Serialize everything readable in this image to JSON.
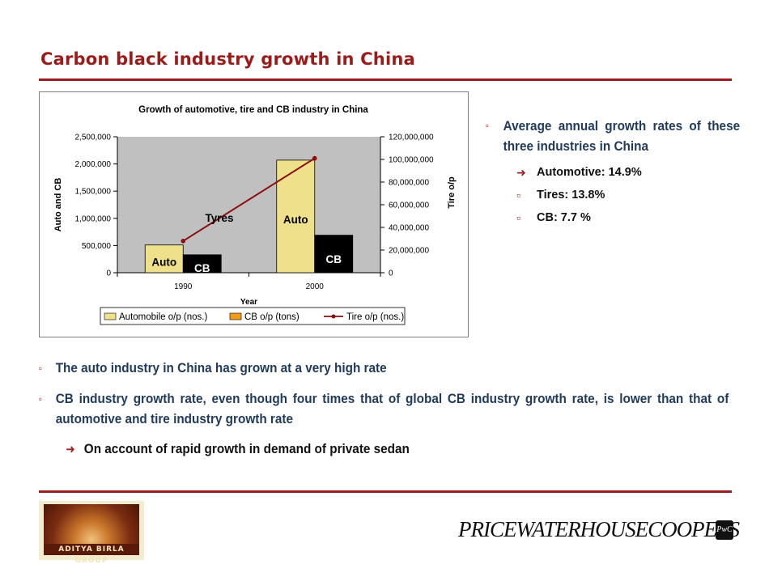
{
  "slide": {
    "title": "Carbon black industry growth in China"
  },
  "chart_data": {
    "type": "bar",
    "title": "Growth of automotive, tire and CB industry in China",
    "xlabel": "Year",
    "ylabel": "Auto and CB",
    "y2label": "Tire o/p",
    "categories": [
      "1990",
      "2000"
    ],
    "ylim": [
      0,
      2500000
    ],
    "y2lim": [
      0,
      120000000
    ],
    "yticks": [
      "0",
      "500,000",
      "1,000,000",
      "1,500,000",
      "2,000,000",
      "2,500,000"
    ],
    "y2ticks": [
      "0",
      "20,000,000",
      "40,000,000",
      "60,000,000",
      "80,000,000",
      "100,000,000",
      "120,000,000"
    ],
    "series": [
      {
        "name": "Automobile o/p (nos.)",
        "axis": "left",
        "kind": "bar",
        "color": "#efe08c",
        "values": [
          510000,
          2070000
        ]
      },
      {
        "name": "CB o/p (tons)",
        "axis": "left",
        "kind": "bar",
        "color": "#000000",
        "values": [
          330000,
          690000
        ]
      },
      {
        "name": "Tire o/p (nos.)",
        "axis": "right",
        "kind": "line",
        "color": "#8b0f0f",
        "values": [
          28000000,
          101000000
        ]
      }
    ],
    "legend_swatch_cb": "#f29a1a",
    "annotations": {
      "auto_1990": "Auto",
      "cb_1990": "CB",
      "auto_2000": "Auto",
      "cb_2000": "CB",
      "tyres": "Tyres"
    },
    "plot_background": "#c0c0c0",
    "legend_position": "bottom"
  },
  "right_bullets": {
    "main": "Average annual growth rates of these three industries in China",
    "items": [
      {
        "marker": "➜",
        "text": "Automotive: 14.9%"
      },
      {
        "marker": "",
        "text": "Tires: 13.8%"
      },
      {
        "marker": "",
        "text": "CB: 7.7 %"
      }
    ]
  },
  "bottom_bullets": {
    "items": [
      {
        "marker": "",
        "text": "The auto industry in China has grown at a very high rate"
      },
      {
        "marker": "",
        "text": "CB industry growth rate, even though four times that of global CB industry growth rate, is lower than that of automotive and tire industry growth rate"
      }
    ],
    "sub": {
      "marker": "➜",
      "text": "On account of rapid growth in demand of private sedan"
    }
  },
  "footer": {
    "left_logo_text": "ADITYA BIRLA GROUP",
    "pwc_text": "PRICEWATERHOUSECOOPERS",
    "pwc_badge": "PwC"
  },
  "colors": {
    "title": "#9b1b1b",
    "rule": "#9b1b1b",
    "bullet_text": "#1f3a5a"
  }
}
